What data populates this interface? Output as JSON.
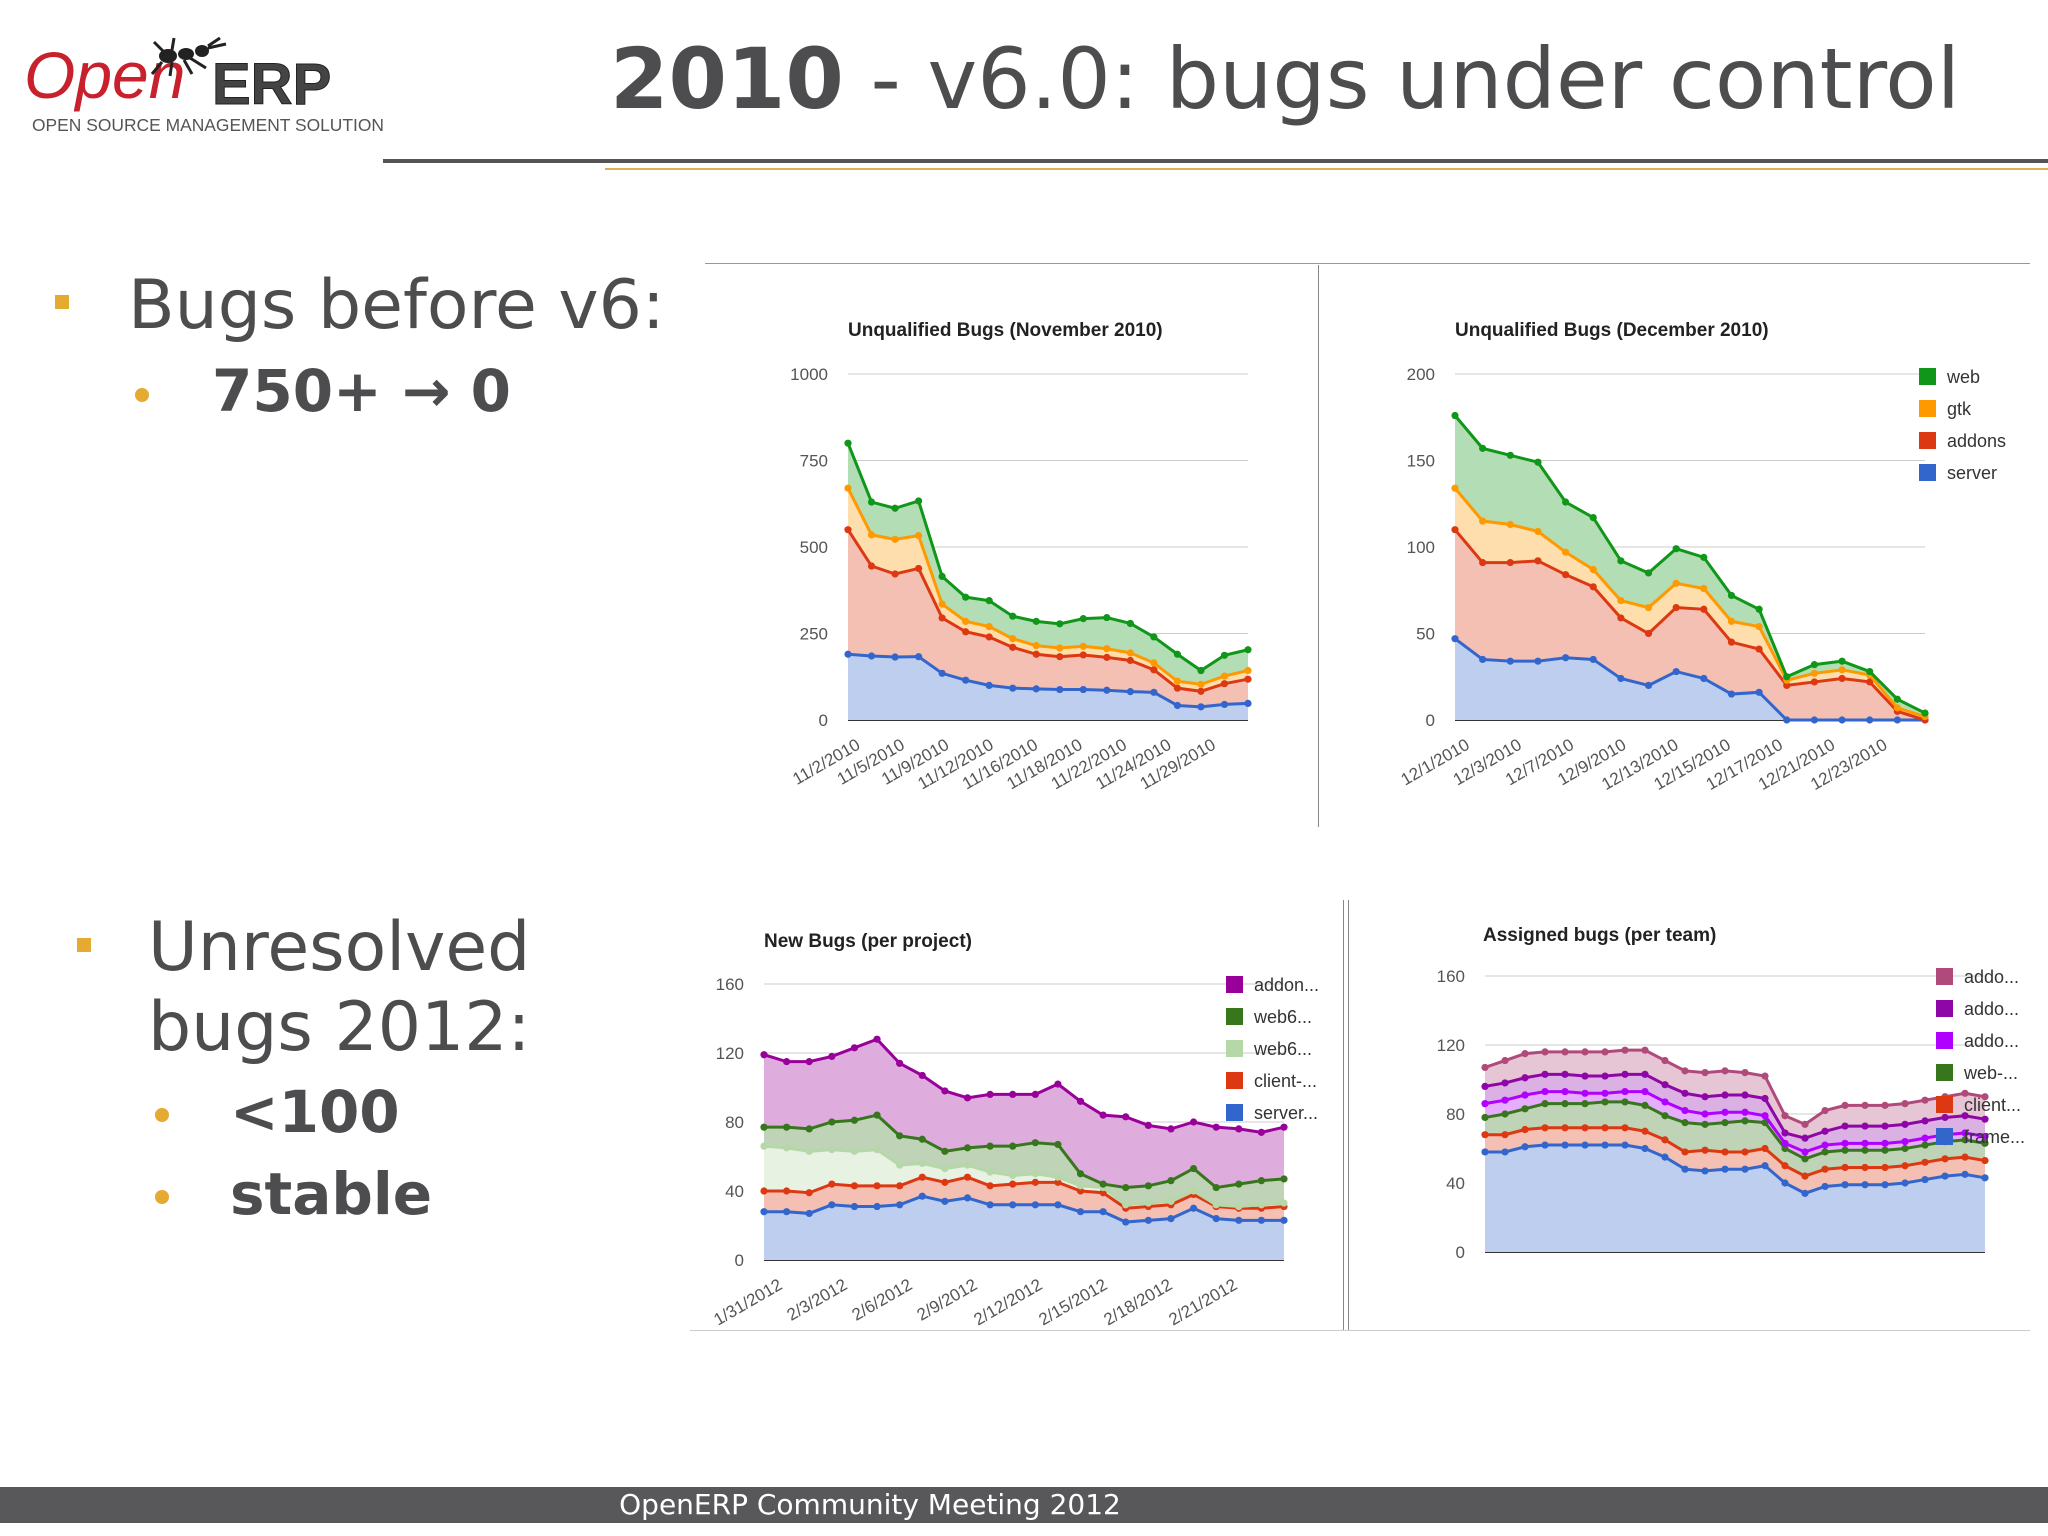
{
  "slide": {
    "title_year": "2010",
    "title_rest": " - v6.0: bugs under control",
    "logo": {
      "open": "Open",
      "erp": "ERP",
      "tagline": "OPEN SOURCE MANAGEMENT SOLUTION"
    },
    "bullets": [
      {
        "text": "Bugs before v6:",
        "subs": [
          "750+ → 0"
        ]
      },
      {
        "text_lines": [
          "Unresolved",
          "bugs 2012:"
        ],
        "subs": [
          "<100",
          "stable"
        ]
      }
    ],
    "footer": "OpenERP Community Meeting 2012"
  },
  "colors": {
    "accent": "#e4aa31",
    "footer_bg": "#58585a",
    "text": "#4d4d4f"
  },
  "chart_data": [
    {
      "type": "area",
      "stacked": true,
      "title": "Unqualified Bugs (November 2010)",
      "ylim": [
        0,
        1000
      ],
      "yticks": [
        0,
        250,
        500,
        750,
        1000
      ],
      "xtick_labels": [
        "11/2/2010",
        "11/5/2010",
        "11/9/2010",
        "11/12/2010",
        "11/16/2010",
        "11/18/2010",
        "11/22/2010",
        "11/24/2010",
        "11/29/2010"
      ],
      "n_points": 18,
      "grid": true,
      "series": [
        {
          "color": "#3366cc",
          "values": [
            190,
            185,
            182,
            183,
            135,
            115,
            100,
            92,
            90,
            88,
            88,
            86,
            82,
            80,
            42,
            38,
            45,
            48
          ]
        },
        {
          "color": "#dc3912",
          "values": [
            360,
            260,
            240,
            255,
            160,
            140,
            140,
            118,
            100,
            95,
            100,
            95,
            90,
            65,
            50,
            45,
            60,
            70
          ]
        },
        {
          "color": "#ff9900",
          "values": [
            120,
            90,
            100,
            95,
            40,
            30,
            30,
            25,
            25,
            25,
            25,
            25,
            22,
            20,
            20,
            20,
            22,
            25
          ]
        },
        {
          "color": "#109618",
          "values": [
            130,
            95,
            90,
            100,
            80,
            70,
            75,
            65,
            70,
            70,
            80,
            90,
            85,
            75,
            78,
            40,
            60,
            60
          ]
        }
      ]
    },
    {
      "type": "area",
      "stacked": true,
      "title": "Unqualified Bugs (December 2010)",
      "ylim": [
        0,
        200
      ],
      "yticks": [
        0,
        50,
        100,
        150,
        200
      ],
      "xtick_labels": [
        "12/1/2010",
        "12/3/2010",
        "12/7/2010",
        "12/9/2010",
        "12/13/2010",
        "12/15/2010",
        "12/17/2010",
        "12/21/2010",
        "12/23/2010"
      ],
      "n_points": 18,
      "grid": true,
      "legend": {
        "position": "right",
        "entries": [
          "web",
          "gtk",
          "addons",
          "server"
        ],
        "colors": [
          "#109618",
          "#ff9900",
          "#dc3912",
          "#3366cc"
        ]
      },
      "series": [
        {
          "name": "server",
          "color": "#3366cc",
          "values": [
            47,
            35,
            34,
            34,
            36,
            35,
            24,
            20,
            28,
            24,
            15,
            16,
            0,
            0,
            0,
            0,
            0,
            0
          ]
        },
        {
          "name": "addons",
          "color": "#dc3912",
          "values": [
            63,
            56,
            57,
            58,
            48,
            42,
            35,
            30,
            37,
            40,
            30,
            25,
            20,
            22,
            24,
            22,
            5,
            0
          ]
        },
        {
          "name": "gtk",
          "color": "#ff9900",
          "values": [
            24,
            24,
            22,
            17,
            13,
            10,
            10,
            15,
            14,
            12,
            12,
            13,
            3,
            5,
            5,
            4,
            2,
            2
          ]
        },
        {
          "name": "web",
          "color": "#109618",
          "values": [
            42,
            42,
            40,
            40,
            29,
            30,
            23,
            20,
            20,
            18,
            15,
            10,
            2,
            5,
            5,
            2,
            5,
            2
          ]
        }
      ]
    },
    {
      "type": "area",
      "stacked": true,
      "title": "New Bugs (per project)",
      "ylim": [
        0,
        160
      ],
      "yticks": [
        0,
        40,
        80,
        120,
        160
      ],
      "xtick_labels": [
        "1/31/2012",
        "2/3/2012",
        "2/6/2012",
        "2/9/2012",
        "2/12/2012",
        "2/15/2012",
        "2/18/2012",
        "2/21/2012"
      ],
      "n_points": 24,
      "grid": true,
      "legend": {
        "position": "right",
        "entries": [
          "addon...",
          "web6...",
          "web6...",
          "client-...",
          "server..."
        ],
        "colors": [
          "#990099",
          "#38761d",
          "#b6d7a8",
          "#dc3912",
          "#3366cc"
        ]
      },
      "series": [
        {
          "name": "server...",
          "color": "#3366cc",
          "values": [
            28,
            28,
            27,
            32,
            31,
            31,
            32,
            37,
            34,
            36,
            32,
            32,
            32,
            32,
            28,
            28,
            22,
            23,
            24,
            30,
            24,
            23,
            23,
            23
          ]
        },
        {
          "name": "client-...",
          "color": "#dc3912",
          "values": [
            12,
            12,
            12,
            12,
            12,
            12,
            11,
            11,
            11,
            12,
            11,
            12,
            13,
            13,
            12,
            11,
            8,
            8,
            8,
            8,
            7,
            7,
            7,
            8
          ]
        },
        {
          "name": "web6...",
          "color": "#b6d7a8",
          "values": [
            26,
            25,
            24,
            20,
            20,
            21,
            12,
            8,
            8,
            7,
            8,
            5,
            5,
            3,
            3,
            3,
            2,
            2,
            2,
            2,
            1,
            1,
            2,
            2
          ]
        },
        {
          "name": "web6...",
          "color": "#38761d",
          "values": [
            11,
            12,
            13,
            16,
            18,
            20,
            17,
            14,
            10,
            10,
            15,
            17,
            18,
            19,
            7,
            2,
            10,
            10,
            12,
            13,
            10,
            13,
            14,
            14
          ]
        },
        {
          "name": "addon...",
          "color": "#990099",
          "values": [
            42,
            38,
            39,
            38,
            42,
            44,
            42,
            37,
            35,
            29,
            30,
            30,
            28,
            35,
            42,
            40,
            41,
            35,
            30,
            27,
            35,
            32,
            28,
            30
          ]
        }
      ]
    },
    {
      "type": "area",
      "stacked": true,
      "title": "Assigned bugs (per team)",
      "ylim": [
        0,
        160
      ],
      "yticks": [
        0,
        40,
        80,
        120,
        160
      ],
      "n_points": 26,
      "grid": true,
      "legend": {
        "position": "right",
        "entries": [
          "addo...",
          "addo...",
          "addo...",
          "web-...",
          "client...",
          "frame..."
        ],
        "colors": [
          "#b04a7a",
          "#8e07a6",
          "#b000ff",
          "#38761d",
          "#dc3912",
          "#3366cc"
        ]
      },
      "series": [
        {
          "name": "frame...",
          "color": "#3366cc",
          "values": [
            58,
            58,
            61,
            62,
            62,
            62,
            62,
            62,
            60,
            55,
            48,
            47,
            48,
            48,
            50,
            40,
            34,
            38,
            39,
            39,
            39,
            40,
            42,
            44,
            45,
            43
          ]
        },
        {
          "name": "client...",
          "color": "#dc3912",
          "values": [
            10,
            10,
            10,
            10,
            10,
            10,
            10,
            10,
            10,
            10,
            10,
            12,
            10,
            10,
            10,
            10,
            10,
            10,
            10,
            10,
            10,
            10,
            10,
            10,
            10,
            10
          ]
        },
        {
          "name": "web-...",
          "color": "#38761d",
          "values": [
            10,
            12,
            12,
            14,
            14,
            14,
            15,
            15,
            15,
            14,
            17,
            15,
            17,
            18,
            15,
            10,
            10,
            10,
            10,
            10,
            10,
            10,
            10,
            10,
            10,
            10
          ]
        },
        {
          "name": "addo...",
          "color": "#b000ff",
          "values": [
            8,
            8,
            8,
            7,
            7,
            6,
            5,
            6,
            8,
            8,
            7,
            6,
            6,
            5,
            4,
            3,
            4,
            4,
            4,
            4,
            4,
            4,
            4,
            4,
            4,
            4
          ]
        },
        {
          "name": "addo...",
          "color": "#8e07a6",
          "values": [
            10,
            10,
            10,
            10,
            10,
            10,
            10,
            10,
            10,
            10,
            10,
            10,
            10,
            10,
            10,
            6,
            8,
            8,
            10,
            10,
            10,
            10,
            10,
            10,
            10,
            10
          ]
        },
        {
          "name": "addo...",
          "color": "#b04a7a",
          "values": [
            11,
            13,
            14,
            13,
            13,
            14,
            14,
            14,
            14,
            14,
            13,
            14,
            14,
            13,
            13,
            10,
            8,
            12,
            12,
            12,
            12,
            12,
            12,
            12,
            13,
            13
          ]
        }
      ]
    }
  ]
}
